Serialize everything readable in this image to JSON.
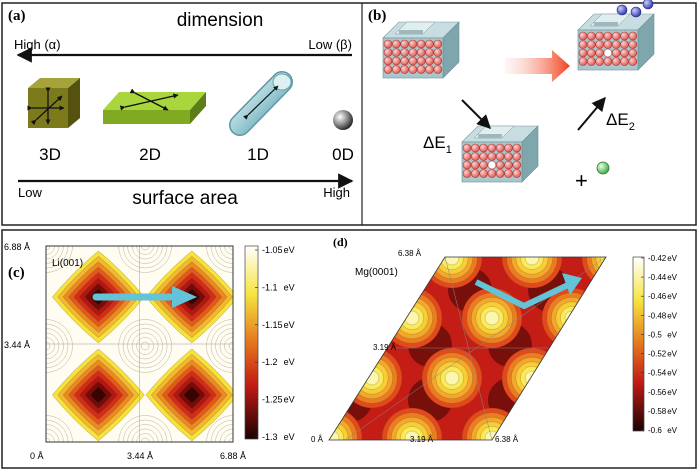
{
  "panel_a": {
    "label": "(a)",
    "dimension_title": "dimension",
    "high_alpha": "High (α)",
    "low_beta": "Low (β)",
    "shapes": [
      "3D",
      "2D",
      "1D",
      "0D"
    ],
    "surface_title": "surface area",
    "low": "Low",
    "high": "High"
  },
  "panel_b": {
    "label": "(b)",
    "delta_e1": "ΔE",
    "delta_e1_sub": "1",
    "delta_e2": "ΔE",
    "delta_e2_sub": "2",
    "plus": "+"
  },
  "panel_c": {
    "label": "(c)",
    "title": "Li(001)",
    "y_ticks": [
      "6.88 Å",
      "3.44 Å",
      "0 Å"
    ],
    "x_ticks": [
      "0 Å",
      "3.44 Å",
      "6.88 Å"
    ],
    "colorbar_ticks": [
      {
        "value": "-1.05",
        "unit": "eV"
      },
      {
        "value": "-1.1",
        "unit": "eV"
      },
      {
        "value": "-1.15",
        "unit": "eV"
      },
      {
        "value": "-1.2",
        "unit": "eV"
      },
      {
        "value": "-1.25",
        "unit": "eV"
      },
      {
        "value": "-1.3",
        "unit": "eV"
      }
    ]
  },
  "panel_d": {
    "label": "(d)",
    "title": "Mg(0001)",
    "y_ticks": [
      "6.38 Å",
      "3.19 Å"
    ],
    "x_ticks": [
      "0 Å",
      "3.19 Å",
      "6.38 Å"
    ],
    "colorbar_ticks": [
      {
        "value": "-0.42",
        "unit": "eV"
      },
      {
        "value": "-0.44",
        "unit": "eV"
      },
      {
        "value": "-0.46",
        "unit": "eV"
      },
      {
        "value": "-0.48",
        "unit": "eV"
      },
      {
        "value": "-0.5",
        "unit": "eV"
      },
      {
        "value": "-0.52",
        "unit": "eV"
      },
      {
        "value": "-0.54",
        "unit": "eV"
      },
      {
        "value": "-0.56",
        "unit": "eV"
      },
      {
        "value": "-0.58",
        "unit": "eV"
      },
      {
        "value": "-0.6",
        "unit": "eV"
      }
    ]
  },
  "colors": {
    "arrow_cyan": "#63c3d8",
    "block_face": "#a9c6cc",
    "block_top": "#c7dde1",
    "atom": "#e06560",
    "adatom_blue": "#3b46c8",
    "adatom_green": "#5ccc5c",
    "cube3d": "#7d7a1c",
    "slab2d": "#93c22a",
    "map_dark": "#2a0404",
    "map_red": "#d8231a",
    "map_yellow": "#f6e23c"
  }
}
